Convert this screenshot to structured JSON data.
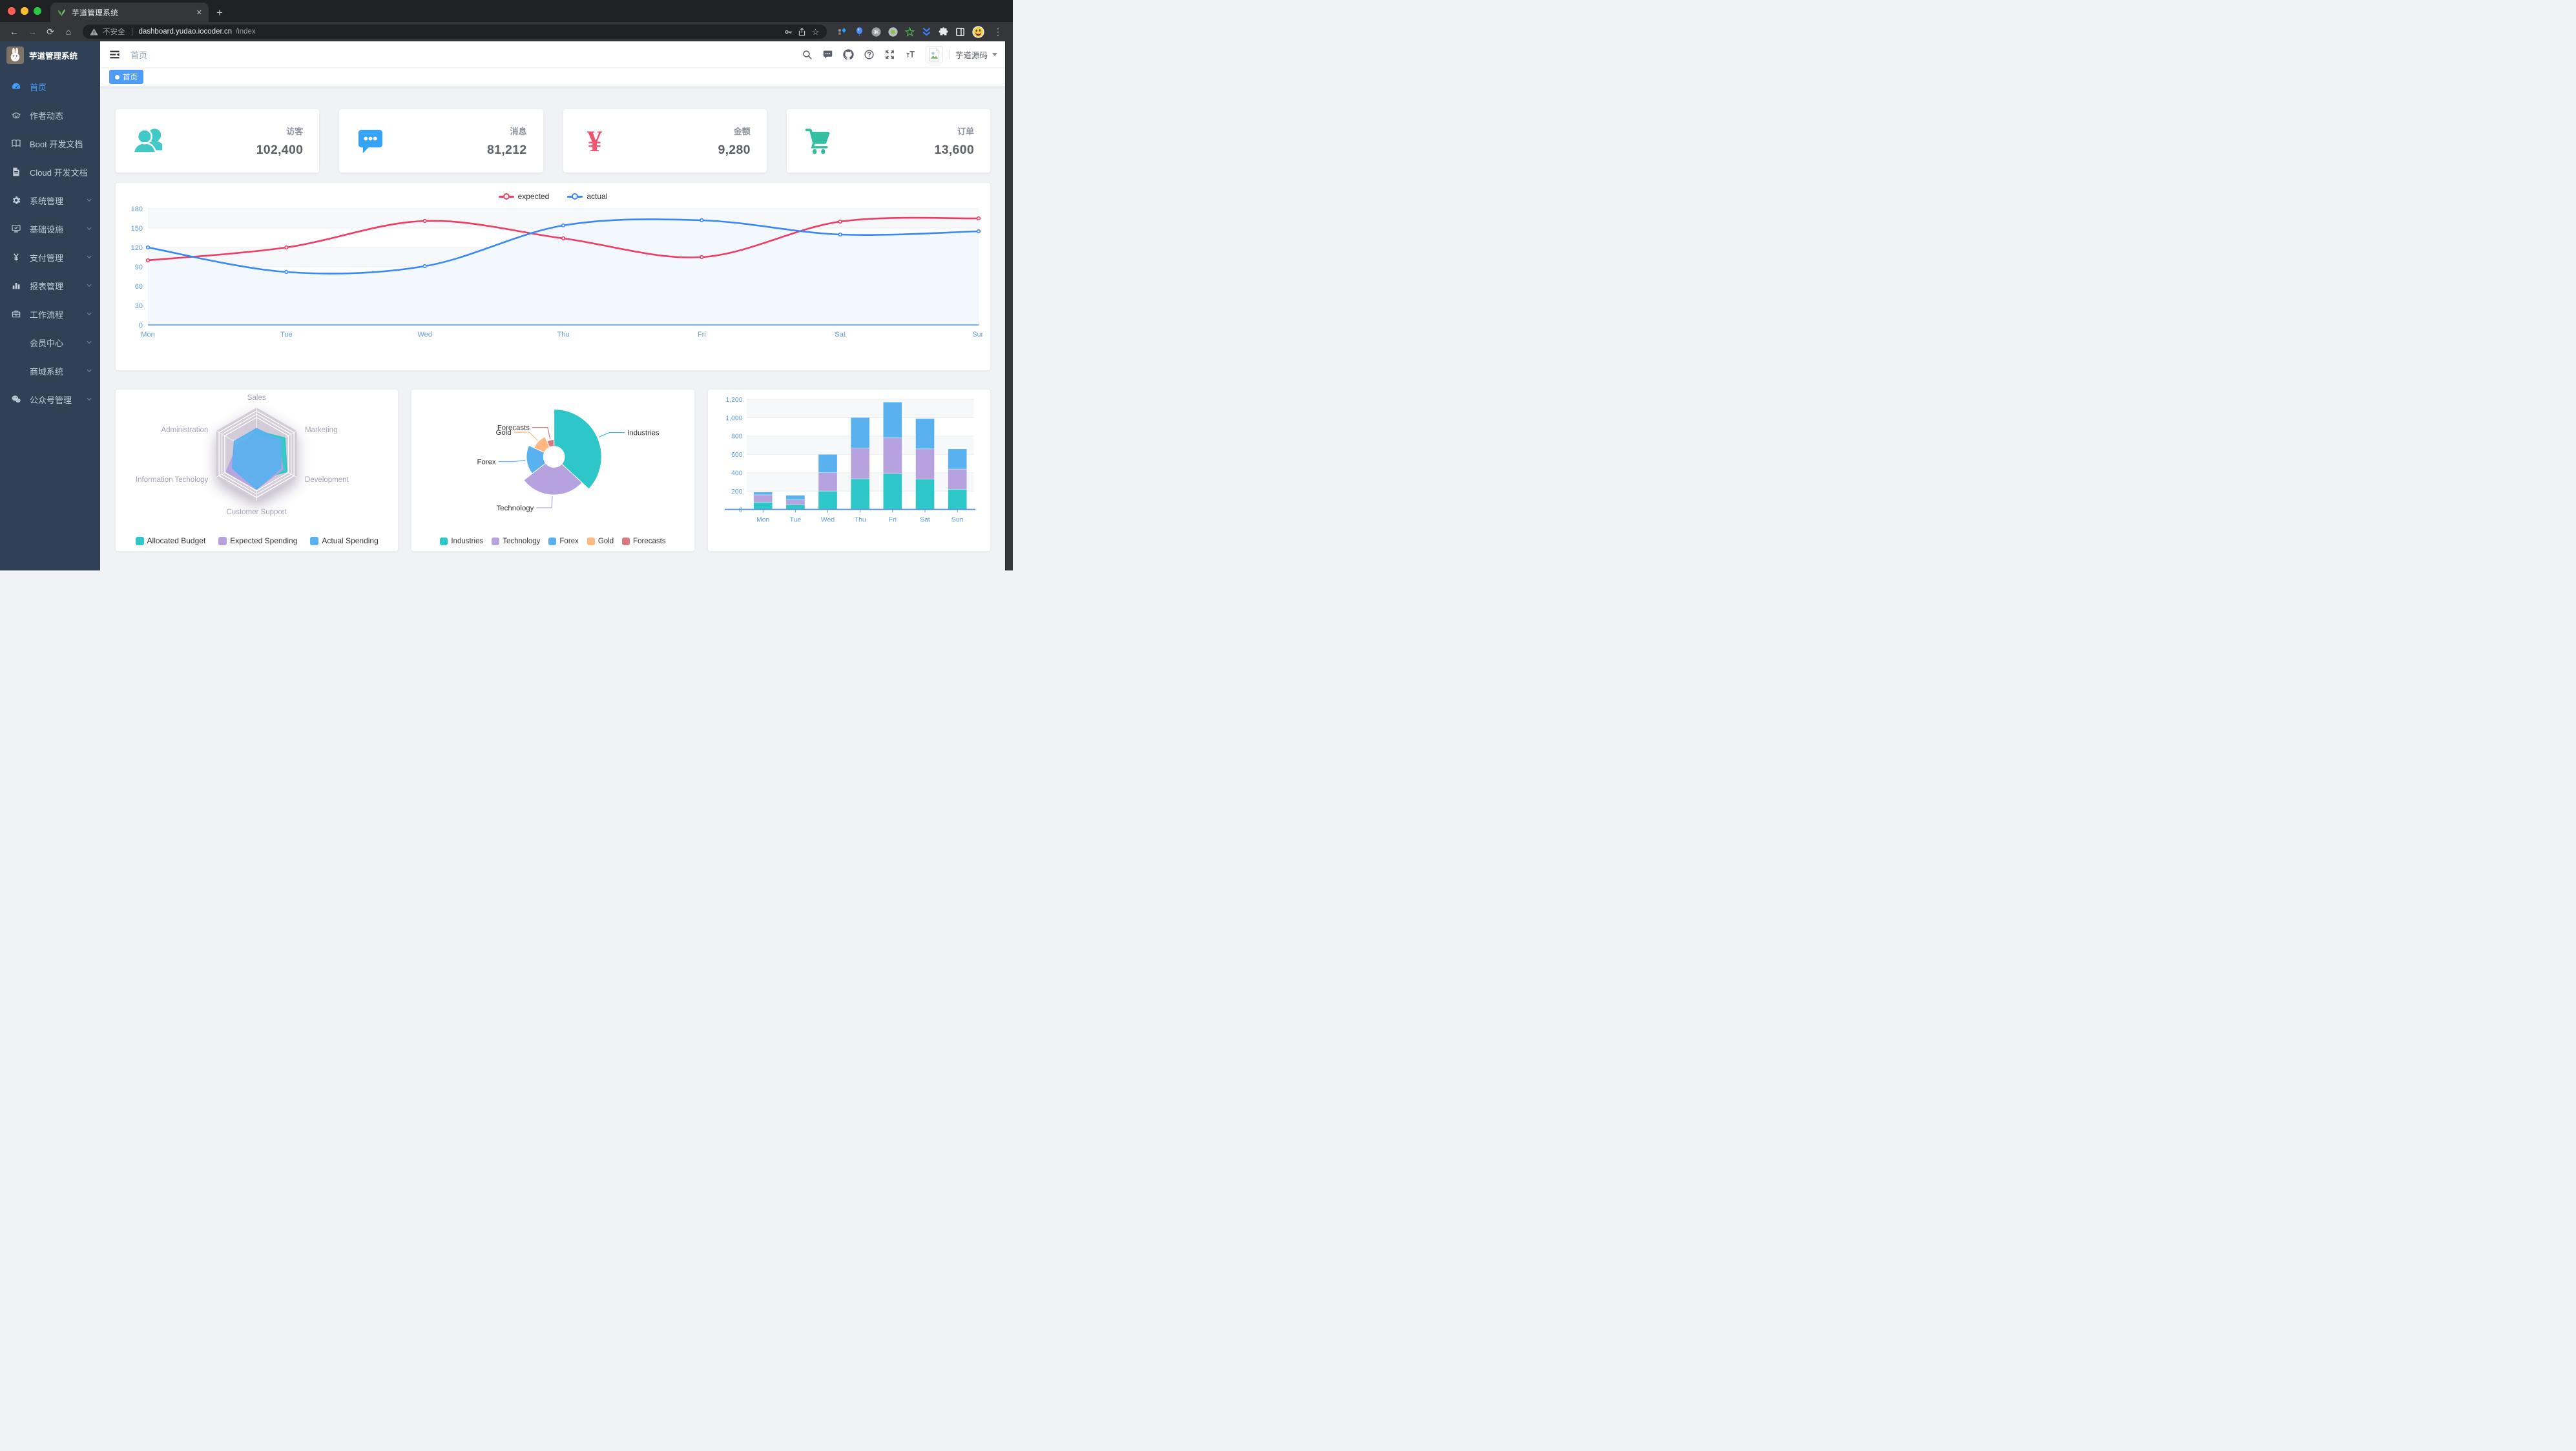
{
  "browser": {
    "tab_title": "芋道管理系统",
    "address": {
      "security_label": "不安全",
      "host": "dashboard.yudao.iocoder.cn",
      "path": "/index"
    },
    "extension_badges": {
      "first": "12",
      "second": "1"
    }
  },
  "sidebar": {
    "logo_title": "芋道管理系统",
    "items": [
      {
        "label": "首页",
        "icon": "gauge",
        "active": true,
        "arrow": false
      },
      {
        "label": "作者动态",
        "icon": "authors",
        "arrow": false
      },
      {
        "label": "Boot 开发文档",
        "icon": "book",
        "arrow": false
      },
      {
        "label": "Cloud 开发文档",
        "icon": "doc",
        "arrow": false
      },
      {
        "label": "系统管理",
        "icon": "gear",
        "arrow": true
      },
      {
        "label": "基础设施",
        "icon": "monitor",
        "arrow": true
      },
      {
        "label": "支付管理",
        "icon": "yen",
        "arrow": true
      },
      {
        "label": "报表管理",
        "icon": "chartbars",
        "arrow": true
      },
      {
        "label": "工作流程",
        "icon": "briefcase",
        "arrow": true
      },
      {
        "label": "会员中心",
        "icon": null,
        "arrow": true
      },
      {
        "label": "商城系统",
        "icon": null,
        "arrow": true
      },
      {
        "label": "公众号管理",
        "icon": "wechat",
        "arrow": true
      }
    ]
  },
  "navbar": {
    "breadcrumb": "首页",
    "user_name": "芋道源码",
    "icons": [
      "search-icon",
      "message-icon",
      "github-icon",
      "question-icon",
      "fullscreen-icon",
      "font-size-icon"
    ]
  },
  "tags": [
    {
      "label": "首页",
      "active": true
    }
  ],
  "panels": [
    {
      "label": "访客",
      "value": "102,400",
      "icon": "people",
      "color": "#40c9c6"
    },
    {
      "label": "消息",
      "value": "81,212",
      "icon": "message",
      "color": "#36a3f7"
    },
    {
      "label": "金额",
      "value": "9,280",
      "icon": "money",
      "color": "#f4516c"
    },
    {
      "label": "订单",
      "value": "13,600",
      "icon": "cart",
      "color": "#34bfa3"
    }
  ],
  "colors": {
    "accent": "#409eff",
    "sidebar_bg": "#304156",
    "content_bg": "#f0f2f5",
    "tag_active": "#4f9bf5",
    "axis_label": "#5f9bdc"
  },
  "chart_data": [
    {
      "id": "weekly-line",
      "type": "line",
      "x": [
        "Mon",
        "Tue",
        "Wed",
        "Thu",
        "Fri",
        "Sat",
        "Sun"
      ],
      "series": [
        {
          "name": "expected",
          "color": "#f23a62",
          "values": [
            100,
            120,
            161,
            134,
            105,
            160,
            165
          ]
        },
        {
          "name": "actual",
          "color": "#3888fa",
          "area_color": "#f3f8ff",
          "values": [
            120,
            82,
            91,
            154,
            162,
            140,
            145
          ]
        }
      ],
      "ylim": [
        0,
        180
      ],
      "yticks": [
        0,
        30,
        60,
        90,
        120,
        150,
        180
      ],
      "grid": true,
      "legend_position": "top"
    },
    {
      "id": "budget-radar",
      "type": "radar",
      "indicators": [
        {
          "name": "Sales",
          "max": 10000
        },
        {
          "name": "Marketing",
          "max": 20000
        },
        {
          "name": "Development",
          "max": 20000
        },
        {
          "name": "Customer Support",
          "max": 20000
        },
        {
          "name": "Information Techology",
          "max": 20000
        },
        {
          "name": "Administration",
          "max": 20000
        }
      ],
      "series": [
        {
          "name": "Allocated Budget",
          "color": "#2ec7c9",
          "values": [
            5000,
            14000,
            15000,
            11000,
            12000,
            7000
          ]
        },
        {
          "name": "Expected Spending",
          "color": "#b6a2de",
          "values": [
            4000,
            11000,
            13000,
            15000,
            15000,
            9000
          ]
        },
        {
          "name": "Actual Spending",
          "color": "#5ab1ef",
          "values": [
            5500,
            12000,
            12000,
            15000,
            12000,
            11000
          ]
        }
      ],
      "legend_position": "bottom"
    },
    {
      "id": "spending-pie",
      "type": "pie",
      "rose": true,
      "slices": [
        {
          "name": "Industries",
          "value": 320,
          "color": "#2ec7c9"
        },
        {
          "name": "Technology",
          "value": 240,
          "color": "#b6a2de"
        },
        {
          "name": "Forex",
          "value": 149,
          "color": "#5ab1ef"
        },
        {
          "name": "Gold",
          "value": 100,
          "color": "#ffb980"
        },
        {
          "name": "Forecasts",
          "value": 59,
          "color": "#d87a80"
        }
      ],
      "legend_position": "bottom"
    },
    {
      "id": "weekly-bar",
      "type": "bar",
      "stacked": true,
      "categories": [
        "Mon",
        "Tue",
        "Wed",
        "Thu",
        "Fri",
        "Sat",
        "Sun"
      ],
      "series": [
        {
          "color": "#2ec7c9",
          "values": [
            79,
            52,
            200,
            334,
            390,
            330,
            220
          ]
        },
        {
          "color": "#b6a2de",
          "values": [
            80,
            52,
            200,
            334,
            390,
            330,
            220
          ]
        },
        {
          "color": "#5ab1ef",
          "values": [
            30,
            50,
            200,
            334,
            390,
            330,
            220
          ]
        }
      ],
      "ylim": [
        0,
        1200
      ],
      "yticks": [
        0,
        200,
        400,
        600,
        800,
        1000,
        1200
      ],
      "grid": true
    }
  ]
}
